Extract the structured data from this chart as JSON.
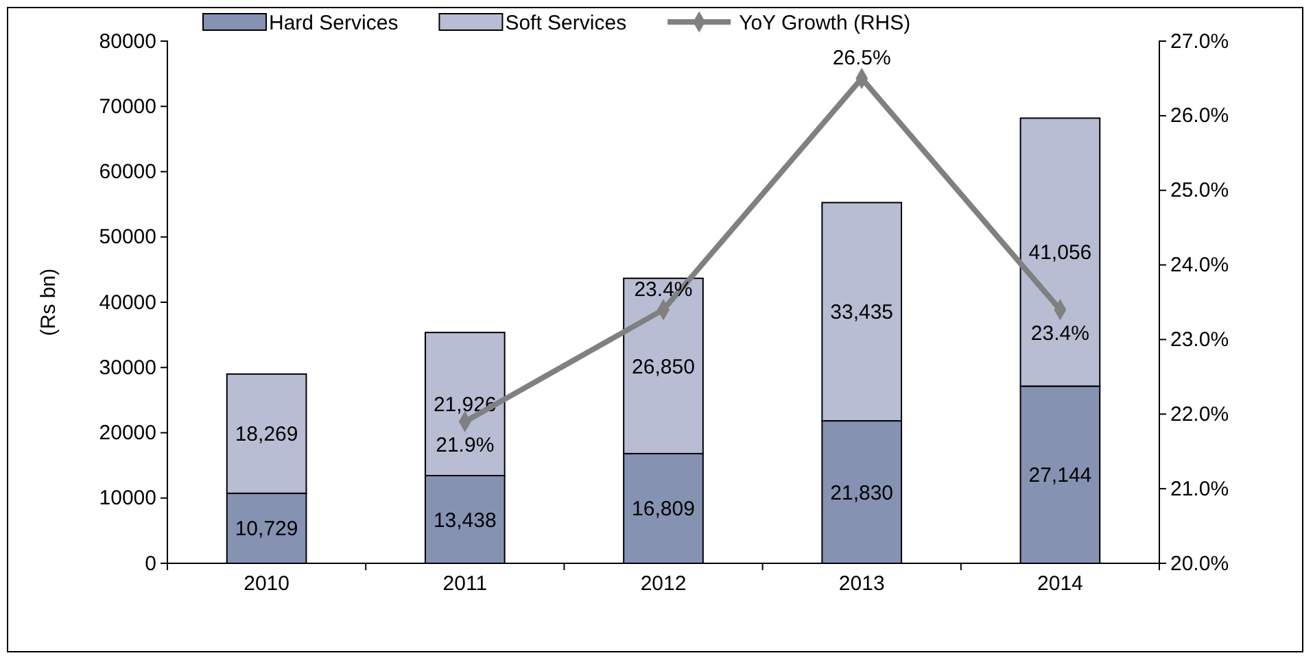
{
  "chart_data": {
    "type": "bar",
    "stacked": true,
    "categories": [
      "2010",
      "2011",
      "2012",
      "2013",
      "2014"
    ],
    "ylabel": "(Rs bn)",
    "ylim": [
      0,
      80000
    ],
    "yticks": [
      0,
      10000,
      20000,
      30000,
      40000,
      50000,
      60000,
      70000,
      80000
    ],
    "y2lim": [
      20,
      27
    ],
    "y2ticks": [
      {
        "value": 20,
        "label": "20.0%"
      },
      {
        "value": 21,
        "label": "21.0%"
      },
      {
        "value": 22,
        "label": "22.0%"
      },
      {
        "value": 23,
        "label": "23.0%"
      },
      {
        "value": 24,
        "label": "24.0%"
      },
      {
        "value": 25,
        "label": "25.0%"
      },
      {
        "value": 26,
        "label": "26.0%"
      },
      {
        "value": 27,
        "label": "27.0%"
      }
    ],
    "legend": "top",
    "grid": false,
    "series": [
      {
        "name": "Hard Services",
        "color": "#8592b2",
        "values": [
          10729,
          13438,
          16809,
          21830,
          27144
        ],
        "value_labels": [
          "10,729",
          "13,438",
          "16,809",
          "21,830",
          "27,144"
        ]
      },
      {
        "name": "Soft Services",
        "color": "#b8bdd3",
        "values": [
          18269,
          21926,
          26850,
          33435,
          41056
        ],
        "value_labels": [
          "18,269",
          "21,926",
          "26,850",
          "33,435",
          "41,056"
        ]
      },
      {
        "name": "YoY Growth (RHS)",
        "type": "line",
        "axis": "y2",
        "color": "#808080",
        "marker": "diamond",
        "line_style": "solid",
        "values": [
          null,
          21.9,
          23.4,
          26.5,
          23.4
        ],
        "value_labels": [
          null,
          "21.9%",
          "23.4%",
          "26.5%",
          "23.4%"
        ]
      }
    ]
  }
}
